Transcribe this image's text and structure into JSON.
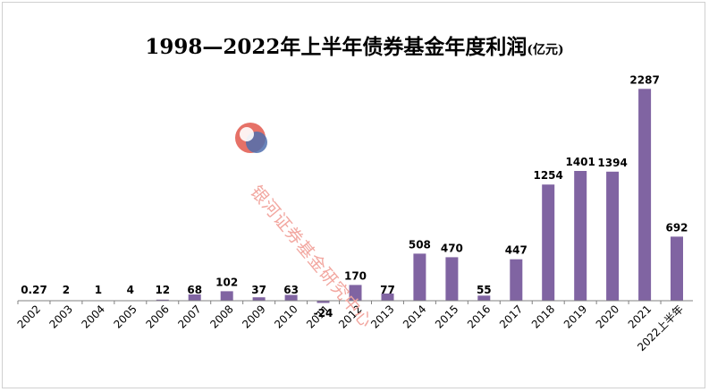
{
  "title": "1998—2022年上半年债券基金年度利润",
  "unit": "(亿元)",
  "watermark": "银河证券基金研究中心",
  "colors": {
    "bar": "#8064a2",
    "axis": "#808080",
    "logo_red": "#e2584c",
    "logo_blue": "#4f6fae"
  },
  "chart_data": {
    "type": "bar",
    "categories": [
      "2002",
      "2003",
      "2004",
      "2005",
      "2006",
      "2007",
      "2008",
      "2009",
      "2010",
      "2011",
      "2012",
      "2013",
      "2014",
      "2015",
      "2016",
      "2017",
      "2018",
      "2019",
      "2020",
      "2021",
      "2022上半年"
    ],
    "values": [
      0.27,
      2,
      1,
      4,
      12,
      68,
      102,
      37,
      63,
      -24,
      170,
      77,
      508,
      470,
      55,
      447,
      1254,
      1401,
      1394,
      2287,
      692
    ],
    "labels": [
      "0.27",
      "2",
      "1",
      "4",
      "12",
      "68",
      "102",
      "37",
      "63",
      "-24",
      "170",
      "77",
      "508",
      "470",
      "55",
      "447",
      "1254",
      "1401",
      "1394",
      "2287",
      "692"
    ],
    "title": "1998—2022年上半年债券基金年度利润",
    "unit": "(亿元)",
    "ylim": [
      -30,
      2300
    ],
    "grid": false,
    "legend": "none"
  }
}
